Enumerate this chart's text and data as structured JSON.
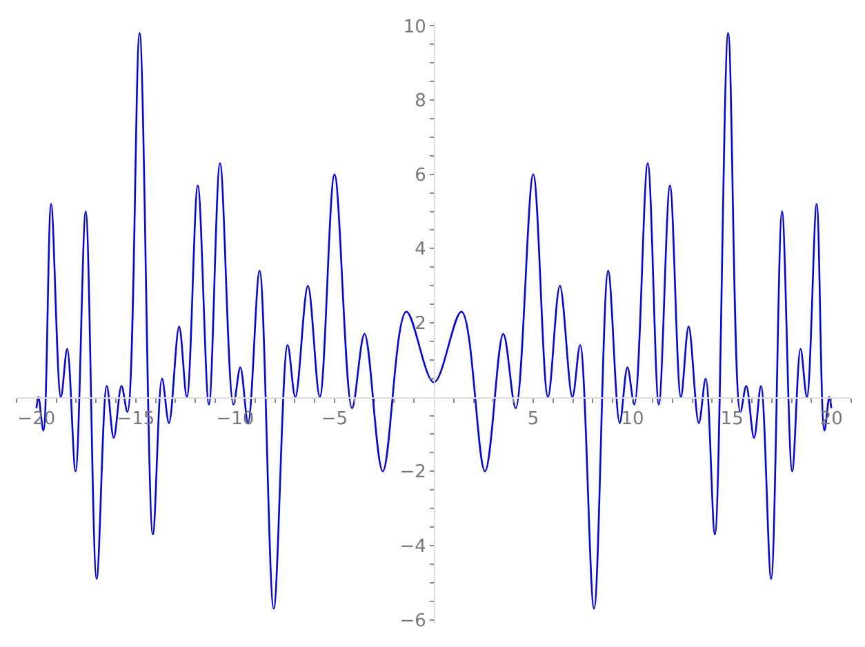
{
  "chart_data": {
    "type": "line",
    "x": [
      -20,
      -19.9,
      -19.65,
      -19.26,
      -18.77,
      -18.45,
      -18.03,
      -17.52,
      -16.97,
      -16.46,
      -16.11,
      -15.72,
      -15.42,
      -14.81,
      -14.14,
      -13.68,
      -13.33,
      -12.82,
      -12.43,
      -11.88,
      -11.32,
      -10.76,
      -10.09,
      -9.74,
      -9.35,
      -8.77,
      -8.06,
      -7.36,
      -6.97,
      -6.34,
      -5.74,
      -5,
      -4.12,
      -3.49,
      -2.57,
      -1.39,
      0,
      1.39,
      2.57,
      3.49,
      4.12,
      5,
      5.74,
      6.34,
      6.97,
      7.36,
      8.06,
      8.77,
      9.35,
      9.74,
      10.09,
      10.76,
      11.32,
      11.88,
      12.43,
      12.82,
      13.33,
      13.68,
      14.14,
      14.81,
      15.42,
      15.72,
      16.11,
      16.46,
      16.97,
      17.52,
      18.03,
      18.45,
      18.77,
      19.26,
      19.65,
      19.9,
      20
    ],
    "series": [
      {
        "color": "#0000ff",
        "values": [
          -0.3,
          0.0,
          -0.9,
          5.2,
          0.0,
          1.3,
          -2.0,
          5.0,
          -4.9,
          0.3,
          -1.1,
          0.3,
          -0.4,
          9.8,
          -3.7,
          0.5,
          -0.7,
          1.9,
          0.0,
          5.7,
          -0.2,
          6.3,
          -0.2,
          0.8,
          -0.7,
          3.4,
          -5.7,
          1.4,
          0.0,
          3.0,
          0.0,
          6.0,
          -0.3,
          1.7,
          -2.0,
          2.3,
          0.4,
          2.3,
          -2.0,
          1.7,
          -0.3,
          6.0,
          0.0,
          3.0,
          0.0,
          1.4,
          -5.7,
          3.4,
          -0.7,
          0.8,
          -0.2,
          6.3,
          -0.2,
          5.7,
          0.0,
          1.9,
          -0.7,
          0.5,
          -3.7,
          9.8,
          -0.4,
          0.3,
          -1.1,
          0.3,
          -4.9,
          5.0,
          -2.0,
          1.3,
          0.0,
          5.2,
          -0.9,
          0.0,
          -0.3
        ]
      }
    ],
    "xlim": [
      -21,
      21
    ],
    "ylim": [
      -6.1,
      10.1
    ],
    "xticks": [
      {
        "value": -21,
        "label": null
      },
      {
        "value": -20,
        "label": "−20"
      },
      {
        "value": -19,
        "label": null
      },
      {
        "value": -18,
        "label": null
      },
      {
        "value": -17,
        "label": null
      },
      {
        "value": -16,
        "label": null
      },
      {
        "value": -15,
        "label": "−15"
      },
      {
        "value": -14,
        "label": null
      },
      {
        "value": -13,
        "label": null
      },
      {
        "value": -12,
        "label": null
      },
      {
        "value": -11,
        "label": null
      },
      {
        "value": -10,
        "label": "−10"
      },
      {
        "value": -9,
        "label": null
      },
      {
        "value": -8,
        "label": null
      },
      {
        "value": -7,
        "label": null
      },
      {
        "value": -6,
        "label": null
      },
      {
        "value": -5,
        "label": "−5"
      },
      {
        "value": -4,
        "label": null
      },
      {
        "value": -3,
        "label": null
      },
      {
        "value": -2,
        "label": null
      },
      {
        "value": -1,
        "label": null
      },
      {
        "value": 1,
        "label": null
      },
      {
        "value": 2,
        "label": null
      },
      {
        "value": 3,
        "label": null
      },
      {
        "value": 4,
        "label": null
      },
      5,
      {
        "value": 6,
        "label": null
      },
      {
        "value": 7,
        "label": null
      },
      {
        "value": 8,
        "label": null
      },
      {
        "value": 9,
        "label": null
      },
      10,
      {
        "value": 11,
        "label": null
      },
      {
        "value": 12,
        "label": null
      },
      {
        "value": 13,
        "label": null
      },
      {
        "value": 14,
        "label": null
      },
      15,
      {
        "value": 16,
        "label": null
      },
      {
        "value": 17,
        "label": null
      },
      {
        "value": 18,
        "label": null
      },
      {
        "value": 19,
        "label": null
      },
      20,
      {
        "value": 21,
        "label": null
      }
    ],
    "yticks": [
      {
        "value": -6,
        "label": "−6"
      },
      {
        "value": -5.5,
        "label": null
      },
      {
        "value": -5,
        "label": null
      },
      {
        "value": -4.5,
        "label": null
      },
      {
        "value": -4,
        "label": "−4"
      },
      {
        "value": -3.5,
        "label": null
      },
      {
        "value": -3,
        "label": null
      },
      {
        "value": -2.5,
        "label": null
      },
      {
        "value": -2,
        "label": "−2"
      },
      {
        "value": -1.5,
        "label": null
      },
      {
        "value": -1,
        "label": null
      },
      {
        "value": -0.5,
        "label": null
      },
      {
        "value": 0.5,
        "label": null
      },
      {
        "value": 1,
        "label": null
      },
      {
        "value": 1.5,
        "label": null
      },
      2,
      {
        "value": 2.5,
        "label": null
      },
      {
        "value": 3,
        "label": null
      },
      {
        "value": 3.5,
        "label": null
      },
      4,
      {
        "value": 4.5,
        "label": null
      },
      {
        "value": 5,
        "label": null
      },
      {
        "value": 5.5,
        "label": null
      },
      6,
      {
        "value": 6.5,
        "label": null
      },
      {
        "value": 7,
        "label": null
      },
      {
        "value": 7.5,
        "label": null
      },
      8,
      {
        "value": 8.5,
        "label": null
      },
      {
        "value": 9,
        "label": null
      },
      {
        "value": 9.5,
        "label": null
      },
      10
    ],
    "grid": false,
    "marker": "none",
    "line_style": "solid"
  }
}
